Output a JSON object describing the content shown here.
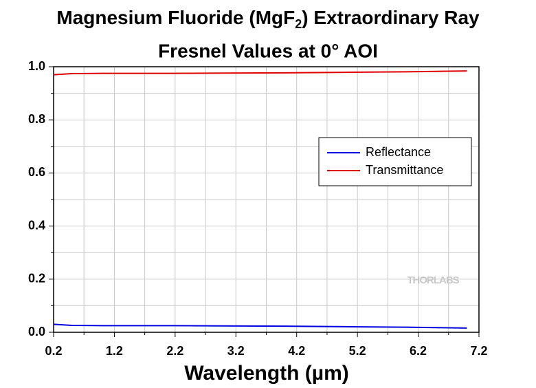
{
  "chart_data": {
    "type": "line",
    "title": [
      "Magnesium Fluoride (MgF",
      "2",
      ") Extraordinary Ray"
    ],
    "subtitle": "Fresnel Values at 0° AOI",
    "x_label": "Wavelength (µm)",
    "watermark": "THORLABS",
    "x": [
      0.2,
      0.5,
      1,
      2,
      3,
      4,
      5,
      6,
      7
    ],
    "series": [
      {
        "name": "Reflectance",
        "color": "#0000e0",
        "values": [
          0.03,
          0.026,
          0.025,
          0.025,
          0.024,
          0.023,
          0.021,
          0.019,
          0.016
        ]
      },
      {
        "name": "Transmittance",
        "color": "#e00000",
        "values": [
          0.97,
          0.974,
          0.975,
          0.975,
          0.976,
          0.977,
          0.979,
          0.981,
          0.984
        ]
      }
    ],
    "xlim": [
      0.2,
      7.2
    ],
    "xticks": [
      0.2,
      1.2,
      2.2,
      3.2,
      4.2,
      5.2,
      6.2,
      7.2
    ],
    "xgrid": [
      0.7,
      1.7,
      2.7,
      3.7,
      4.7,
      5.7,
      6.7
    ],
    "ylim": [
      0,
      1
    ],
    "yticks": [
      {
        "value": 0,
        "label": "0.0"
      },
      0.2,
      0.4,
      0.6,
      0.8,
      {
        "value": 1,
        "label": "1.0"
      }
    ],
    "ygrid": [
      0.1,
      0.3,
      0.5,
      0.7,
      0.9
    ],
    "grid": true,
    "legend": "upper right"
  }
}
